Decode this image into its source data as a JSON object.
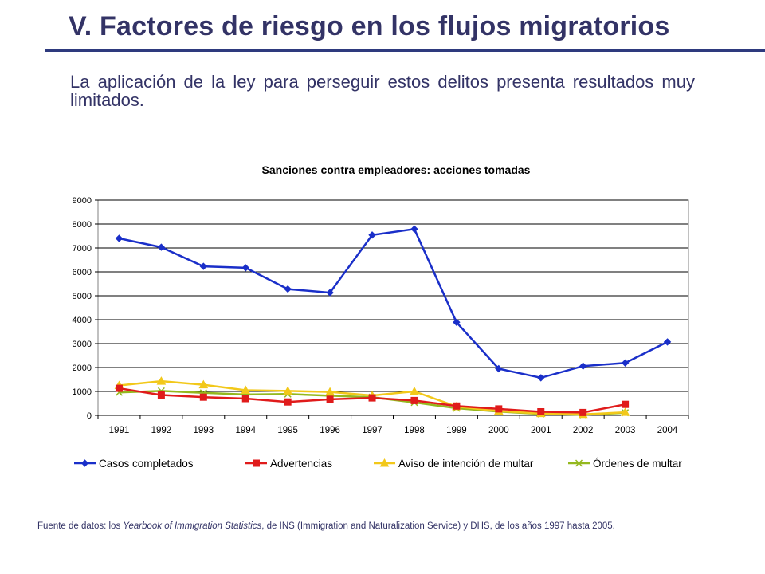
{
  "slide": {
    "title": "V. Factores de riesgo en los flujos migratorios",
    "subtitle": "La aplicación de la ley para perseguir estos delitos presenta resultados muy limitados."
  },
  "source": {
    "prefix": "Fuente de datos: los ",
    "publication": "Yearbook of Immigration Statistics",
    "suffix": ", de INS (Immigration and Naturalization Service) y DHS, de los años 1997 hasta 2005."
  },
  "colors": {
    "title_text": "#333366",
    "rule": "#2e3a7e",
    "series": [
      "#1a2fc9",
      "#e01b1b",
      "#f2c81a",
      "#94b81e"
    ]
  },
  "chart_data": {
    "type": "line",
    "title": "Sanciones contra empleadores: acciones tomadas",
    "xlabel": "",
    "ylabel": "",
    "categories": [
      "1991",
      "1992",
      "1993",
      "1994",
      "1995",
      "1996",
      "1997",
      "1998",
      "1999",
      "2000",
      "2001",
      "2002",
      "2003",
      "2004"
    ],
    "ylim": [
      0,
      9000
    ],
    "yticks": [
      0,
      1000,
      2000,
      3000,
      4000,
      5000,
      6000,
      7000,
      8000,
      9000
    ],
    "grid": true,
    "legend_position": "bottom",
    "series": [
      {
        "name": "Casos completados",
        "marker": "diamond",
        "values": [
          7400,
          7030,
          6230,
          6170,
          5280,
          5130,
          7540,
          7790,
          3890,
          1950,
          1570,
          2060,
          2190,
          3070
        ]
      },
      {
        "name": "Advertencias",
        "marker": "square",
        "values": [
          1130,
          850,
          760,
          700,
          560,
          670,
          730,
          620,
          390,
          270,
          150,
          120,
          460,
          null
        ]
      },
      {
        "name": "Aviso de intención de multar",
        "marker": "triangle",
        "values": [
          1250,
          1430,
          1280,
          1050,
          1020,
          980,
          830,
          1000,
          370,
          180,
          80,
          40,
          130,
          null
        ]
      },
      {
        "name": "Órdenes de multar",
        "marker": "x",
        "values": [
          960,
          1020,
          940,
          870,
          890,
          820,
          760,
          540,
          300,
          160,
          60,
          20,
          110,
          null
        ]
      }
    ]
  }
}
